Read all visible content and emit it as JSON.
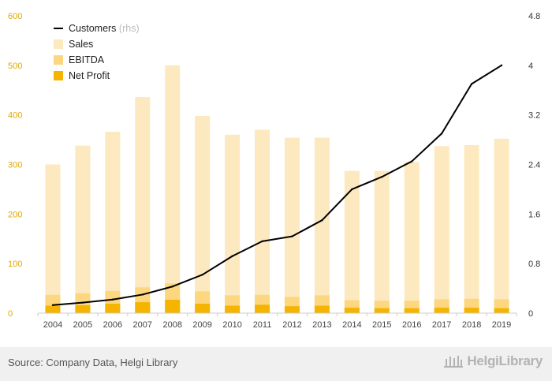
{
  "chart_data": {
    "type": "bar",
    "categories": [
      "2004",
      "2005",
      "2006",
      "2007",
      "2008",
      "2009",
      "2010",
      "2011",
      "2012",
      "2013",
      "2014",
      "2015",
      "2016",
      "2017",
      "2018",
      "2019"
    ],
    "series": [
      {
        "name": "Sales",
        "type": "bar",
        "axis": "left",
        "color": "#fde9bf",
        "values": [
          300,
          338,
          366,
          436,
          500,
          398,
          360,
          370,
          354,
          354,
          287,
          287,
          305,
          337,
          339,
          352
        ]
      },
      {
        "name": "EBITDA",
        "type": "bar",
        "axis": "left",
        "color": "#fcd77f",
        "values": [
          37,
          40,
          45,
          52,
          60,
          44,
          36,
          37,
          33,
          36,
          26,
          25,
          25,
          28,
          29,
          28
        ]
      },
      {
        "name": "Net Profit",
        "type": "bar",
        "axis": "left",
        "color": "#f5b400",
        "values": [
          15,
          16,
          19,
          22,
          27,
          19,
          15,
          17,
          14,
          15,
          11,
          10,
          10,
          11,
          11,
          10
        ]
      },
      {
        "name": "Customers",
        "type": "line",
        "axis": "right",
        "color": "#000000",
        "values": [
          0.13,
          0.17,
          0.22,
          0.3,
          0.43,
          0.62,
          0.92,
          1.16,
          1.24,
          1.5,
          2.0,
          2.2,
          2.45,
          2.9,
          3.7,
          4.0
        ]
      }
    ],
    "ylim_left": [
      0,
      600
    ],
    "yticks_left": [
      0,
      100,
      200,
      300,
      400,
      500,
      600
    ],
    "ylim_right": [
      0,
      4.8
    ],
    "yticks_right": [
      "0",
      "0.8",
      "1.6",
      "2.4",
      "3.2",
      "4",
      "4.8"
    ],
    "legend_position": "top-left",
    "grid": false
  },
  "legend": {
    "customers_label": "Customers",
    "customers_suffix": "(rhs)",
    "sales_label": "Sales",
    "ebitda_label": "EBITDA",
    "net_profit_label": "Net Profit"
  },
  "footer": {
    "source": "Source: Company Data, Helgi Library",
    "logo": "HelgiLibrary"
  }
}
